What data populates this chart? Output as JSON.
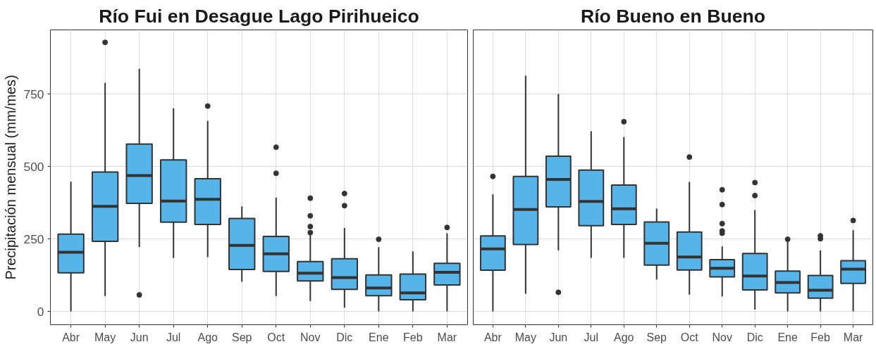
{
  "chart_data": [
    {
      "type": "box",
      "title": "Río Fui en Desague Lago Pirihueico",
      "ylabel": "Precipitación mensual (mm/mes)",
      "categories": [
        "Abr",
        "May",
        "Jun",
        "Jul",
        "Ago",
        "Sep",
        "Oct",
        "Nov",
        "Dic",
        "Ene",
        "Feb",
        "Mar"
      ],
      "ylim": [
        -46,
        972
      ],
      "yticks": [
        0,
        250,
        500,
        750
      ],
      "grid": true,
      "series": [
        {
          "color": "#56b4e9",
          "boxes": [
            {
              "low": 0,
              "q1": 133,
              "median": 204,
              "q3": 267,
              "high": 448
            },
            {
              "low": 53,
              "q1": 242,
              "median": 363,
              "q3": 481,
              "high": 789,
              "outliers": [
                929
              ]
            },
            {
              "low": 222,
              "q1": 373,
              "median": 469,
              "q3": 578,
              "high": 838,
              "outliers": [
                57
              ]
            },
            {
              "low": 184,
              "q1": 308,
              "median": 381,
              "q3": 523,
              "high": 701
            },
            {
              "low": 187,
              "q1": 300,
              "median": 387,
              "q3": 458,
              "high": 658,
              "outliers": [
                709
              ]
            },
            {
              "low": 102,
              "q1": 145,
              "median": 228,
              "q3": 321,
              "high": 363
            },
            {
              "low": 53,
              "q1": 138,
              "median": 199,
              "q3": 259,
              "high": 393,
              "outliers": [
                567,
                477
              ]
            },
            {
              "low": 36,
              "q1": 105,
              "median": 132,
              "q3": 172,
              "high": 267,
              "outliers": [
                391,
                330,
                293,
                272
              ]
            },
            {
              "low": 13,
              "q1": 76,
              "median": 117,
              "q3": 182,
              "high": 288,
              "outliers": [
                407,
                365
              ]
            },
            {
              "low": 0,
              "q1": 54,
              "median": 81,
              "q3": 126,
              "high": 222,
              "outliers": [
                249
              ]
            },
            {
              "low": 0,
              "q1": 40,
              "median": 64,
              "q3": 129,
              "high": 207
            },
            {
              "low": 0,
              "q1": 91,
              "median": 135,
              "q3": 166,
              "high": 270,
              "outliers": [
                290
              ]
            }
          ]
        }
      ]
    },
    {
      "type": "box",
      "title": "Río Bueno en Bueno",
      "categories": [
        "Abr",
        "May",
        "Jun",
        "Jul",
        "Ago",
        "Sep",
        "Oct",
        "Nov",
        "Dic",
        "Ene",
        "Feb",
        "Mar"
      ],
      "ylim": [
        -46,
        972
      ],
      "yticks": [
        0,
        250,
        500,
        750
      ],
      "grid": true,
      "tick_labels": "x",
      "series": [
        {
          "color": "#56b4e9",
          "boxes": [
            {
              "low": 0,
              "q1": 142,
              "median": 216,
              "q3": 261,
              "high": 404,
              "outliers": [
                466
              ]
            },
            {
              "low": 61,
              "q1": 231,
              "median": 352,
              "q3": 466,
              "high": 814
            },
            {
              "low": 211,
              "q1": 361,
              "median": 456,
              "q3": 536,
              "high": 751,
              "outliers": [
                66
              ]
            },
            {
              "low": 185,
              "q1": 296,
              "median": 380,
              "q3": 488,
              "high": 622
            },
            {
              "low": 185,
              "q1": 300,
              "median": 354,
              "q3": 436,
              "high": 602,
              "outliers": [
                655
              ]
            },
            {
              "low": 110,
              "q1": 160,
              "median": 235,
              "q3": 309,
              "high": 355
            },
            {
              "low": 58,
              "q1": 143,
              "median": 188,
              "q3": 274,
              "high": 447,
              "outliers": [
                533
              ]
            },
            {
              "low": 52,
              "q1": 119,
              "median": 149,
              "q3": 179,
              "high": 224,
              "outliers": [
                420,
                369,
                303,
                278,
                270
              ]
            },
            {
              "low": 6,
              "q1": 74,
              "median": 122,
              "q3": 200,
              "high": 350,
              "outliers": [
                445,
                400
              ]
            },
            {
              "low": 0,
              "q1": 64,
              "median": 100,
              "q3": 139,
              "high": 240,
              "outliers": [
                249
              ]
            },
            {
              "low": 0,
              "q1": 46,
              "median": 73,
              "q3": 124,
              "high": 211,
              "outliers": [
                261,
                251
              ]
            },
            {
              "low": 0,
              "q1": 97,
              "median": 146,
              "q3": 175,
              "high": 280,
              "outliers": [
                314
              ]
            }
          ]
        }
      ]
    }
  ]
}
